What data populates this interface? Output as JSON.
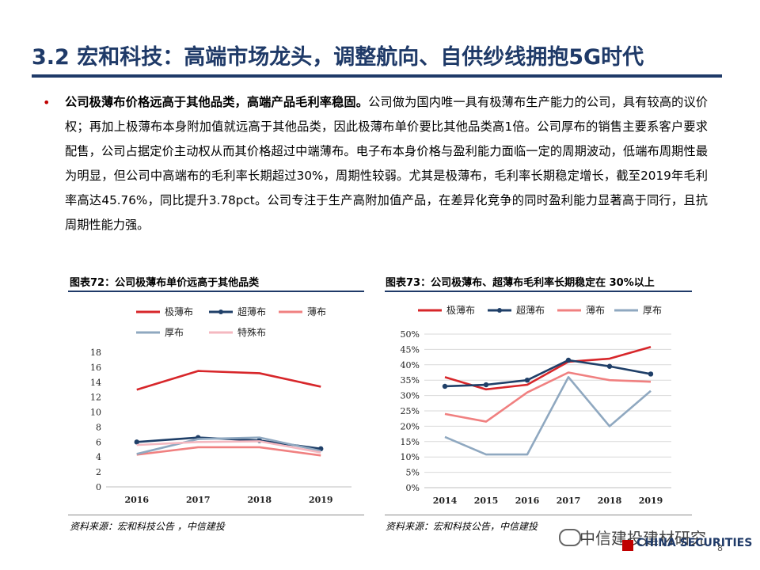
{
  "header": {
    "title": "3.2 宏和科技：高端市场龙头，调整航向、自供纱线拥抱5G时代"
  },
  "body": {
    "lead": "公司极薄布价格远高于其他品类，高端产品毛利率稳固。",
    "text": "公司做为国内唯一具有极薄布生产能力的公司，具有较高的议价权；再加上极薄布本身附加值就远高于其他品类，因此极薄布单价要比其他品类高1倍。公司厚布的销售主要系客户要求配售，公司占据定价主动权从而其价格超过中端薄布。电子布本身价格与盈利能力面临一定的周期波动，低端布周期性最为明显，但公司中高端布的毛利率长期超过30%，周期性较弱。尤其是极薄布，毛利率长期稳定增长，截至2019年毛利率高达45.76%，同比提升3.78pct。公司专注于生产高附加值产品，在差异化竞争的同时盈利能力显著高于同行，且抗周期性能力强。"
  },
  "figures": [
    {
      "label": "图表72：",
      "title": "公司极薄布单价远高于其他品类",
      "source": "资料来源：宏和科技公告 ，中信建投"
    },
    {
      "label": "图表73：",
      "title": "公司极薄布、超薄布毛利率长期稳定在 30%以上",
      "source": "资料来源：宏和科技公告，中信建投"
    }
  ],
  "chart_data": [
    {
      "type": "line",
      "x": [
        "2016",
        "2017",
        "2018",
        "2019"
      ],
      "ylim": [
        0,
        18
      ],
      "yticks": [
        "0",
        "2",
        "4",
        "6",
        "8",
        "10",
        "12",
        "14",
        "16",
        "18"
      ],
      "legend_position": "top",
      "series": [
        {
          "name": "极薄布",
          "color": "#d7262a",
          "values": [
            13.0,
            15.5,
            15.2,
            13.4
          ]
        },
        {
          "name": "超薄布",
          "color": "#1f3f68",
          "values": [
            6.0,
            6.6,
            6.2,
            5.1
          ]
        },
        {
          "name": "薄布",
          "color": "#f08080",
          "values": [
            4.3,
            5.3,
            5.3,
            4.2
          ]
        },
        {
          "name": "厚布",
          "color": "#8fa8c0",
          "values": [
            4.4,
            6.4,
            6.6,
            4.8
          ]
        },
        {
          "name": "特殊布",
          "color": "#f4b8c0",
          "values": [
            5.6,
            6.0,
            6.1,
            4.6
          ]
        }
      ]
    },
    {
      "type": "line",
      "x": [
        "2014",
        "2015",
        "2016",
        "2017",
        "2018",
        "2019"
      ],
      "ylim": [
        0,
        50
      ],
      "yticks": [
        "0%",
        "5%",
        "10%",
        "15%",
        "20%",
        "25%",
        "30%",
        "35%",
        "40%",
        "45%",
        "50%"
      ],
      "legend_position": "top",
      "series": [
        {
          "name": "极薄布",
          "color": "#d7262a",
          "values": [
            36.0,
            32.0,
            33.5,
            41.0,
            42.0,
            45.8
          ]
        },
        {
          "name": "超薄布",
          "color": "#1f3f68",
          "values": [
            33.0,
            33.5,
            35.0,
            41.5,
            39.5,
            37.0
          ]
        },
        {
          "name": "薄布",
          "color": "#f08080",
          "values": [
            24.0,
            21.5,
            31.0,
            37.5,
            35.0,
            34.5
          ]
        },
        {
          "name": "厚布",
          "color": "#8fa8c0",
          "values": [
            16.5,
            10.8,
            10.8,
            36.0,
            20.0,
            31.5
          ]
        }
      ]
    }
  ],
  "watermark": {
    "text": "中信建投建材研究",
    "logo": "CHINA SECURITIES",
    "page": "8"
  }
}
